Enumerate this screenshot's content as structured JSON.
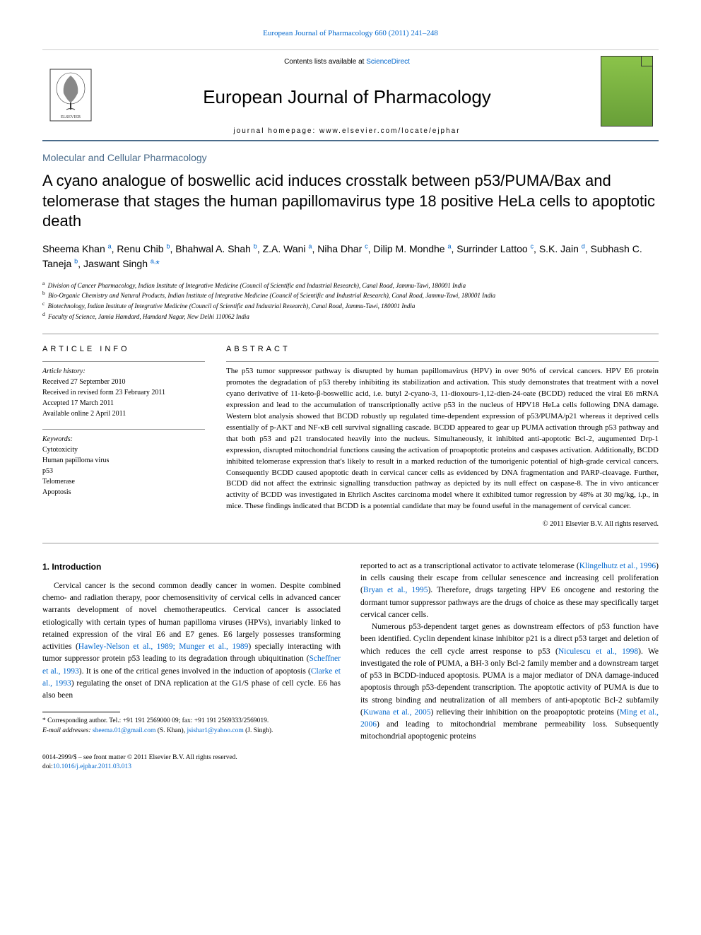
{
  "top_link": {
    "text": "European Journal of Pharmacology 660 (2011) 241–248",
    "color": "#0066cc"
  },
  "header": {
    "contents_prefix": "Contents lists available at ",
    "contents_link": "ScienceDirect",
    "journal_name": "European Journal of Pharmacology",
    "homepage_prefix": "journal homepage: ",
    "homepage_url": "www.elsevier.com/locate/ejphar"
  },
  "section_tag": "Molecular and Cellular Pharmacology",
  "title": "A cyano analogue of boswellic acid induces crosstalk between p53/PUMA/Bax and telomerase that stages the human papillomavirus type 18 positive HeLa cells to apoptotic death",
  "authors_html": "Sheema Khan <sup>a</sup>, Renu Chib <sup>b</sup>, Bhahwal A. Shah <sup>b</sup>, Z.A. Wani <sup>a</sup>, Niha Dhar <sup>c</sup>, Dilip M. Mondhe <sup>a</sup>, Surrinder Lattoo <sup>c</sup>, S.K. Jain <sup>d</sup>, Subhash C. Taneja <sup>b</sup>, Jaswant Singh <sup>a,</sup><span class='ast'>*</span>",
  "affiliations": [
    {
      "tag": "a",
      "text": "Division of Cancer Pharmacology, Indian Institute of Integrative Medicine (Council of Scientific and Industrial Research), Canal Road, Jammu-Tawi, 180001 India"
    },
    {
      "tag": "b",
      "text": "Bio-Organic Chemistry and Natural Products, Indian Institute of Integrative Medicine (Council of Scientific and Industrial Research), Canal Road, Jammu-Tawi, 180001 India"
    },
    {
      "tag": "c",
      "text": "Biotechnology, Indian Institute of Integrative Medicine (Council of Scientific and Industrial Research), Canal Road, Jammu-Tawi, 180001 India"
    },
    {
      "tag": "d",
      "text": "Faculty of Science, Jamia Hamdard, Hamdard Nagar, New Delhi 110062 India"
    }
  ],
  "info": {
    "heading_info": "ARTICLE INFO",
    "heading_abstract": "ABSTRACT",
    "history_label": "Article history:",
    "history": [
      "Received 27 September 2010",
      "Received in revised form 23 February 2011",
      "Accepted 17 March 2011",
      "Available online 2 April 2011"
    ],
    "keywords_label": "Keywords:",
    "keywords": [
      "Cytotoxicity",
      "Human papilloma virus",
      "p53",
      "Telomerase",
      "Apoptosis"
    ]
  },
  "abstract": "The p53 tumor suppressor pathway is disrupted by human papillomavirus (HPV) in over 90% of cervical cancers. HPV E6 protein promotes the degradation of p53 thereby inhibiting its stabilization and activation. This study demonstrates that treatment with a novel cyano derivative of 11-keto-β-boswellic acid, i.e. butyl 2-cyano-3, 11-dioxours-1,12-dien-24-oate (BCDD) reduced the viral E6 mRNA expression and lead to the accumulation of transcriptionally active p53 in the nucleus of HPV18 HeLa cells following DNA damage. Western blot analysis showed that BCDD robustly up regulated time-dependent expression of p53/PUMA/p21 whereas it deprived cells essentially of p-AKT and NF-κB cell survival signalling cascade. BCDD appeared to gear up PUMA activation through p53 pathway and that both p53 and p21 translocated heavily into the nucleus. Simultaneously, it inhibited anti-apoptotic Bcl-2, augumented Drp-1 expression, disrupted mitochondrial functions causing the activation of proapoptotic proteins and caspases activation. Additionally, BCDD inhibited telomerase expression that's likely to result in a marked reduction of the tumorigenic potential of high-grade cervical cancers. Consequently BCDD caused apoptotic death in cervical cancer cells as evidenced by DNA fragmentation and PARP-cleavage. Further, BCDD did not affect the extrinsic signalling transduction pathway as depicted by its null effect on caspase-8. The in vivo anticancer activity of BCDD was investigated in Ehrlich Ascites carcinoma model where it exhibited tumor regression by 48% at 30 mg/kg, i.p., in mice. These findings indicated that BCDD is a potential candidate that may be found useful in the management of cervical cancer.",
  "copyright": "© 2011 Elsevier B.V. All rights reserved.",
  "intro_heading": "1. Introduction",
  "intro_para1_pre": "Cervical cancer is the second common deadly cancer in women. Despite combined chemo- and radiation therapy, poor chemosensitivity of cervical cells in advanced cancer warrants development of novel chemotherapeutics. Cervical cancer is associated etiologically with certain types of human papilloma viruses (HPVs), invariably linked to retained expression of the viral E6 and E7 genes. E6 largely possesses transforming activities (",
  "cite1": "Hawley-Nelson et al., 1989; Munger et al., 1989",
  "intro_para1_mid1": ") specially interacting with tumor suppressor protein p53 leading to its degradation through ubiquitination (",
  "cite2": "Scheffner et al., 1993",
  "intro_para1_mid2": "). It is one of the critical genes involved in the induction of apoptosis (",
  "cite3": "Clarke et al., 1993",
  "intro_para1_post": ") regulating the onset of DNA replication at the G1/S phase of cell cycle. E6 has also been",
  "intro_para2_pre": "reported to act as a transcriptional activator to activate telomerase (",
  "cite4": "Klingelhutz et al., 1996",
  "intro_para2_mid": ") in cells causing their escape from cellular senescence and increasing cell proliferation (",
  "cite5": "Bryan et al., 1995",
  "intro_para2_post": "). Therefore, drugs targeting HPV E6 oncogene and restoring the dormant tumor suppressor pathways are the drugs of choice as these may specifically target cervical cancer cells.",
  "intro_para3_pre": "Numerous p53-dependent target genes as downstream effectors of p53 function have been identified. Cyclin dependent kinase inhibitor p21 is a direct p53 target and deletion of which reduces the cell cycle arrest response to p53 (",
  "cite6": "Niculescu et al., 1998",
  "intro_para3_mid1": "). We investigated the role of PUMA, a BH-3 only Bcl-2 family member and a downstream target of p53 in BCDD-induced apoptosis. PUMA is a major mediator of DNA damage-induced apoptosis through p53-dependent transcription. The apoptotic activity of PUMA is due to its strong binding and neutralization of all members of anti-apoptotic Bcl-2 subfamily (",
  "cite7": "Kuwana et al., 2005",
  "intro_para3_mid2": ") relieving their inhibition on the proapoptotic proteins (",
  "cite8": "Ming et al., 2006",
  "intro_para3_post": ") and leading to mitochondrial membrane permeability loss. Subsequently mitochondrial apoptogenic proteins",
  "footnote_corr": "* Corresponding author. Tel.: +91 191 2569000 09; fax: +91 191 2569333/2569019.",
  "footnote_email_label": "E-mail addresses:",
  "footnote_email1": "sheema.01@gmail.com",
  "footnote_email1_who": " (S. Khan), ",
  "footnote_email2": "jsishar1@yahoo.com",
  "footnote_email2_who": " (J. Singh).",
  "bottom": {
    "line1": "0014-2999/$ – see front matter © 2011 Elsevier B.V. All rights reserved.",
    "doi_prefix": "doi:",
    "doi": "10.1016/j.ejphar.2011.03.013"
  },
  "colors": {
    "link": "#0066cc",
    "section_tag": "#4a6b8a",
    "rule": "#999999",
    "cover_green_top": "#8bc34a",
    "cover_green_bottom": "#689f38"
  },
  "typography": {
    "title_fontsize": 22,
    "journal_name_fontsize": 26,
    "body_fontsize": 11.5,
    "abstract_fontsize": 11,
    "affiliation_fontsize": 9
  }
}
